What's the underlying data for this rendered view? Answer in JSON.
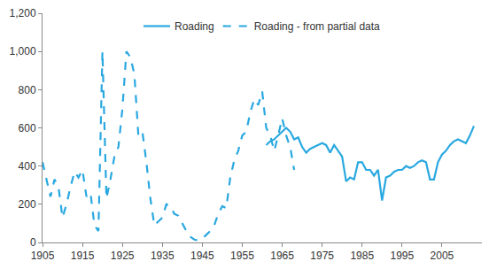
{
  "chart_data": {
    "type": "line",
    "legend": "top",
    "grid": false,
    "xlim": [
      1905,
      2015
    ],
    "xticks": [
      1905,
      1915,
      1925,
      1935,
      1945,
      1955,
      1965,
      1975,
      1985,
      1995,
      2005
    ],
    "ylim": [
      0,
      1200
    ],
    "yticks": [
      0,
      200,
      400,
      600,
      800,
      {
        "value": 1000,
        "label": "1,000"
      },
      {
        "value": 1200,
        "label": "1,200"
      }
    ],
    "series": [
      {
        "name": "Roading",
        "color": "#29a8e0",
        "line_style": "solid",
        "x": [
          1961,
          1962,
          1963,
          1964,
          1965,
          1966,
          1967,
          1968,
          1969,
          1970,
          1971,
          1972,
          1973,
          1974,
          1975,
          1976,
          1977,
          1978,
          1979,
          1980,
          1981,
          1982,
          1983,
          1984,
          1985,
          1986,
          1987,
          1988,
          1989,
          1990,
          1991,
          1992,
          1993,
          1994,
          1995,
          1996,
          1997,
          1998,
          1999,
          2000,
          2001,
          2002,
          2003,
          2004,
          2005,
          2006,
          2007,
          2008,
          2009,
          2010,
          2011,
          2012,
          2013
        ],
        "values": [
          510,
          530,
          540,
          560,
          580,
          600,
          580,
          540,
          550,
          500,
          470,
          490,
          500,
          510,
          520,
          510,
          470,
          510,
          480,
          450,
          320,
          340,
          330,
          420,
          420,
          380,
          380,
          350,
          380,
          220,
          340,
          350,
          370,
          380,
          380,
          400,
          390,
          400,
          420,
          430,
          420,
          330,
          330,
          420,
          460,
          480,
          510,
          530,
          540,
          530,
          520,
          560,
          610
        ]
      },
      {
        "name": "Roading - from partial data",
        "color": "#29a8e0",
        "line_style": "dash",
        "x": [
          1905,
          1906,
          1907,
          1908,
          1909,
          1910,
          1911,
          1912,
          1913,
          1914,
          1915,
          1916,
          1917,
          1918,
          1919,
          1920,
          1921,
          1922,
          1923,
          1924,
          1925,
          1926,
          1927,
          1928,
          1929,
          1930,
          1931,
          1932,
          1933,
          1934,
          1935,
          1936,
          1937,
          1938,
          1939,
          1940,
          1941,
          1942,
          1943,
          1944,
          1945,
          1946,
          1947,
          1948,
          1949,
          1950,
          1951,
          1952,
          1953,
          1954,
          1955,
          1956,
          1957,
          1958,
          1959,
          1960,
          1961,
          1962,
          1963,
          1964,
          1965,
          1966,
          1967,
          1968
        ],
        "values": [
          420,
          330,
          240,
          330,
          290,
          130,
          200,
          290,
          370,
          340,
          380,
          240,
          260,
          90,
          60,
          1000,
          230,
          330,
          450,
          500,
          700,
          1000,
          970,
          880,
          560,
          580,
          420,
          230,
          90,
          110,
          130,
          200,
          190,
          150,
          140,
          100,
          60,
          30,
          15,
          10,
          20,
          40,
          60,
          90,
          150,
          190,
          180,
          340,
          430,
          480,
          560,
          580,
          680,
          750,
          720,
          790,
          600,
          560,
          480,
          560,
          650,
          560,
          500,
          380
        ]
      }
    ]
  }
}
